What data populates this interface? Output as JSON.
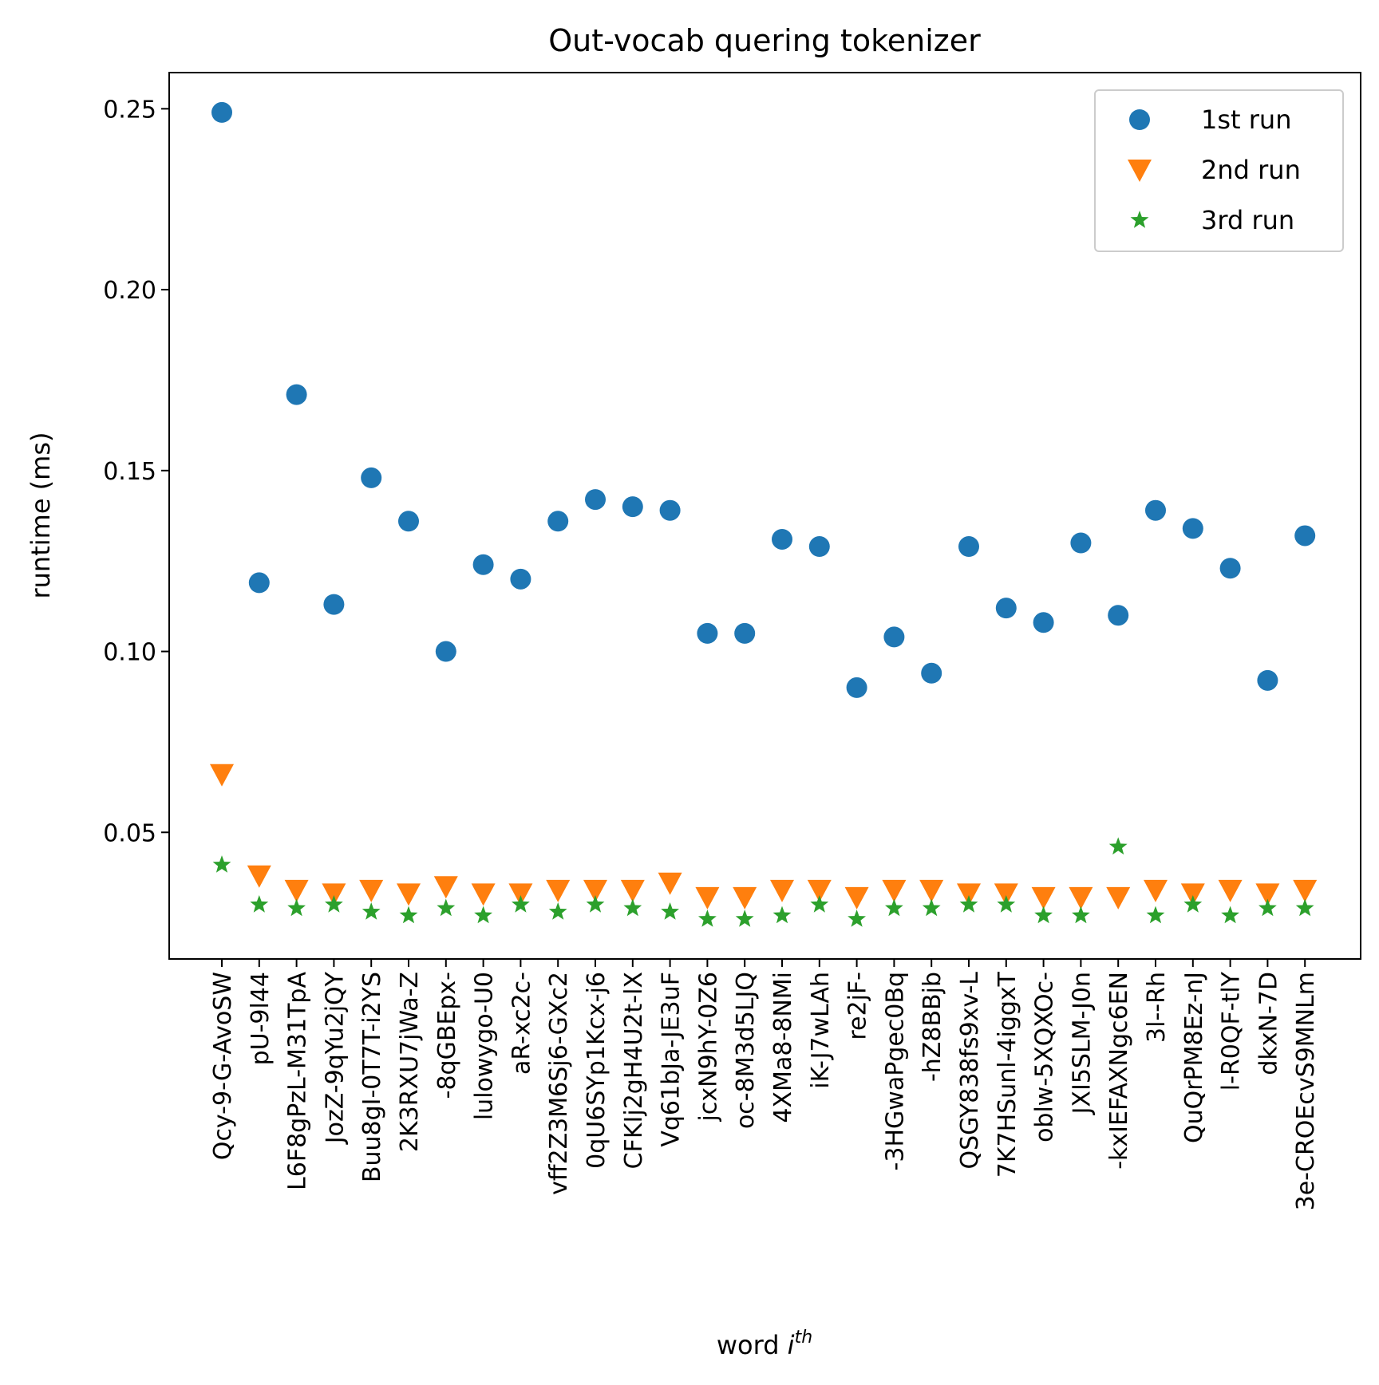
{
  "chart_data": {
    "type": "scatter",
    "title": "Out-vocab quering tokenizer",
    "xlabel": "word ",
    "xlabel_italic": "i",
    "xlabel_sup": "th",
    "ylabel": "runtime (ms)",
    "ylim": [
      0.015,
      0.26
    ],
    "yticks": [
      "0.05",
      "0.10",
      "0.15",
      "0.20",
      "0.25"
    ],
    "grid": false,
    "legend_position": "top-right",
    "categories": [
      "Qcy-9-G-AvoSW",
      "pU-9l44",
      "L6F8gPzL-M31TpA",
      "JozZ-9qYu2jQY",
      "Buu8gI-0T7T-i2YS",
      "2K3RXU7jWa-Z",
      "-8qGBEpx-",
      "lulowygo-U0",
      "aR-xc2c-",
      "vff2Z3M6Sj6-GXc2",
      "0qU6SYp1Kcx-j6",
      "CFKIj2gH4U2t-lX",
      "Vq61bJa-JE3uF",
      "jcxN9hY-0Z6",
      "oc-8M3d5LJQ",
      "4XMa8-8NMi",
      "iK-J7wLAh",
      "re2jF-",
      "-3HGwaPgec0Bq",
      "-hZ8BBjb",
      "QSGY838fs9xv-L",
      "7K7HSunl-4iggxT",
      "oblw-5XQXOc-",
      "JXI5SLM-J0n",
      "-kxIEFAXNgc6EN",
      "3l--Rh",
      "QuQrPM8Ez-nJ",
      "l-R0QF-tlY",
      "dkxN-7D",
      "3e-CROEcvS9MNLm"
    ],
    "series": [
      {
        "name": "1st run",
        "marker": "circle",
        "color": "#1f77b4",
        "values": [
          0.249,
          0.119,
          0.171,
          0.113,
          0.148,
          0.136,
          0.1,
          0.124,
          0.12,
          0.136,
          0.142,
          0.14,
          0.139,
          0.105,
          0.105,
          0.131,
          0.129,
          0.09,
          0.104,
          0.094,
          0.129,
          0.112,
          0.108,
          0.13,
          0.11,
          0.139,
          0.134,
          0.123,
          0.092,
          0.132
        ]
      },
      {
        "name": "2nd run",
        "marker": "triangle-down",
        "color": "#ff7f0e",
        "values": [
          0.066,
          0.038,
          0.034,
          0.033,
          0.034,
          0.033,
          0.035,
          0.033,
          0.033,
          0.034,
          0.034,
          0.034,
          0.036,
          0.032,
          0.032,
          0.034,
          0.034,
          0.032,
          0.034,
          0.034,
          0.033,
          0.033,
          0.032,
          0.032,
          0.032,
          0.034,
          0.033,
          0.034,
          0.033,
          0.034
        ]
      },
      {
        "name": "3rd run",
        "marker": "star",
        "color": "#2ca02c",
        "values": [
          0.041,
          0.03,
          0.029,
          0.03,
          0.028,
          0.027,
          0.029,
          0.027,
          0.03,
          0.028,
          0.03,
          0.029,
          0.028,
          0.026,
          0.026,
          0.027,
          0.03,
          0.026,
          0.029,
          0.029,
          0.03,
          0.03,
          0.027,
          0.027,
          0.046,
          0.027,
          0.03,
          0.027,
          0.029,
          0.029
        ]
      }
    ]
  }
}
